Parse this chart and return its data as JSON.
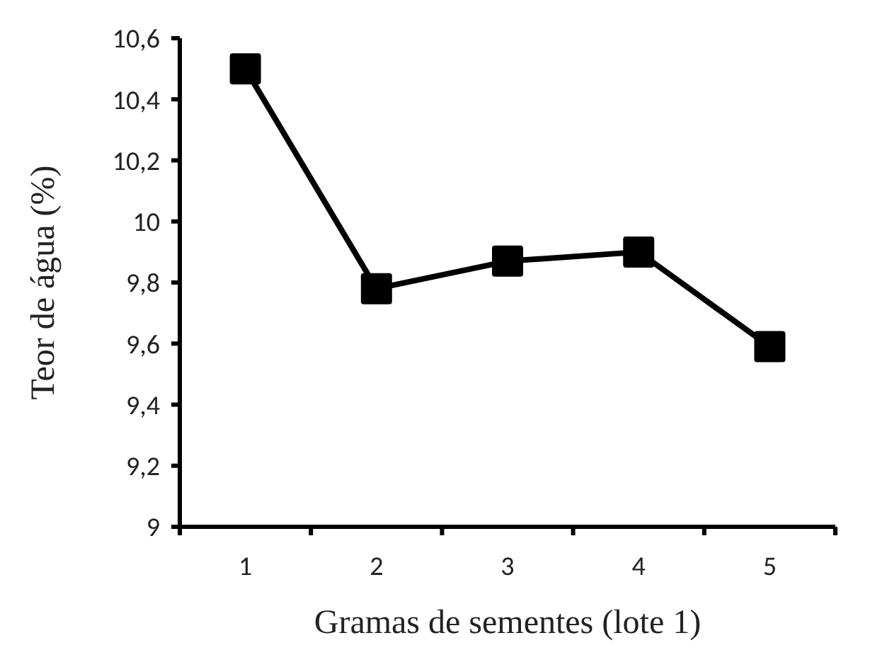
{
  "chart_data": {
    "type": "line",
    "xlabel": "Gramas de sementes (lote 1)",
    "ylabel": "Teor de água (%)",
    "categories": [
      "1",
      "2",
      "3",
      "4",
      "5"
    ],
    "series": [
      {
        "color": "#000000",
        "values": [
          10.5,
          9.78,
          9.87,
          9.9,
          9.59
        ]
      }
    ],
    "ylim": [
      9,
      10.6
    ],
    "yticks": [
      {
        "value": 9,
        "label": "9"
      },
      {
        "value": 9.2,
        "label": "9,2"
      },
      {
        "value": 9.4,
        "label": "9,4"
      },
      {
        "value": 9.6,
        "label": "9,6"
      },
      {
        "value": 9.8,
        "label": "9,8"
      },
      {
        "value": 10,
        "label": "10"
      },
      {
        "value": 10.2,
        "label": "10,2"
      },
      {
        "value": 10.4,
        "label": "10,4"
      },
      {
        "value": 10.6,
        "label": "10,6"
      }
    ],
    "marker": "square",
    "line_style": "solid",
    "grid": false
  }
}
